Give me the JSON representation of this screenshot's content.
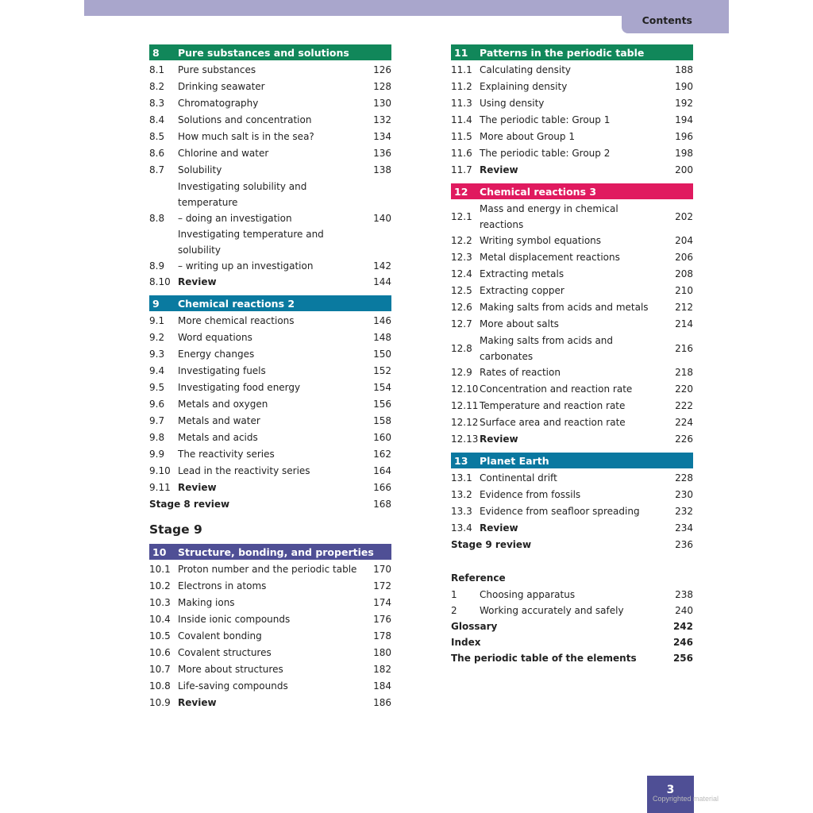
{
  "header": {
    "title": "Contents"
  },
  "colors": {
    "band": "#a9a6cc",
    "ch8": "#11875a",
    "ch9": "#0a7aa0",
    "ch10": "#4f4f95",
    "ch11": "#11875a",
    "ch12": "#e01a5f",
    "ch13": "#0a78a0"
  },
  "left": [
    {
      "type": "hdr",
      "n": "8",
      "t": "Pure substances and solutions",
      "color": "#11875a"
    },
    {
      "n": "8.1",
      "t": "Pure substances",
      "p": "126"
    },
    {
      "n": "8.2",
      "t": "Drinking seawater",
      "p": "128"
    },
    {
      "n": "8.3",
      "t": "Chromatography",
      "p": "130"
    },
    {
      "n": "8.4",
      "t": "Solutions and concentration",
      "p": "132"
    },
    {
      "n": "8.5",
      "t": "How much salt is in the sea?",
      "p": "134"
    },
    {
      "n": "8.6",
      "t": "Chlorine and water",
      "p": "136"
    },
    {
      "n": "8.7",
      "t": "Solubility",
      "p": "138"
    },
    {
      "n": "8.8",
      "t": "Investigating solubility and temperature",
      "t2": "– doing an investigation",
      "p": "140"
    },
    {
      "n": "8.9",
      "t": "Investigating temperature and solubility",
      "t2": "– writing up an investigation",
      "p": "142"
    },
    {
      "n": "8.10",
      "t": "Review",
      "p": "144",
      "bold": true
    },
    {
      "type": "hdr",
      "n": "9",
      "t": "Chemical reactions 2",
      "color": "#0a7aa0"
    },
    {
      "n": "9.1",
      "t": "More chemical reactions",
      "p": "146"
    },
    {
      "n": "9.2",
      "t": "Word equations",
      "p": "148"
    },
    {
      "n": "9.3",
      "t": "Energy changes",
      "p": "150"
    },
    {
      "n": "9.4",
      "t": "Investigating fuels",
      "p": "152"
    },
    {
      "n": "9.5",
      "t": "Investigating food energy",
      "p": "154"
    },
    {
      "n": "9.6",
      "t": "Metals and oxygen",
      "p": "156"
    },
    {
      "n": "9.7",
      "t": "Metals and water",
      "p": "158"
    },
    {
      "n": "9.8",
      "t": "Metals and acids",
      "p": "160"
    },
    {
      "n": "9.9",
      "t": "The reactivity series",
      "p": "162"
    },
    {
      "n": "9.10",
      "t": "Lead in the reactivity series",
      "p": "164"
    },
    {
      "n": "9.11",
      "t": "Review",
      "p": "166",
      "bold": true
    },
    {
      "type": "full",
      "t": "Stage 8 review",
      "p": "168"
    },
    {
      "type": "stage",
      "t": "Stage 9"
    },
    {
      "type": "hdr",
      "n": "10",
      "t": "Structure, bonding, and properties",
      "color": "#4f4f95"
    },
    {
      "n": "10.1",
      "t": "Proton number and the periodic table",
      "p": "170"
    },
    {
      "n": "10.2",
      "t": "Electrons in atoms",
      "p": "172"
    },
    {
      "n": "10.3",
      "t": "Making ions",
      "p": "174"
    },
    {
      "n": "10.4",
      "t": "Inside ionic compounds",
      "p": "176"
    },
    {
      "n": "10.5",
      "t": "Covalent bonding",
      "p": "178"
    },
    {
      "n": "10.6",
      "t": "Covalent structures",
      "p": "180"
    },
    {
      "n": "10.7",
      "t": "More about structures",
      "p": "182"
    },
    {
      "n": "10.8",
      "t": "Life-saving compounds",
      "p": "184"
    },
    {
      "n": "10.9",
      "t": "Review",
      "p": "186",
      "bold": true
    }
  ],
  "right": [
    {
      "type": "hdr",
      "n": "11",
      "t": "Patterns in the periodic table",
      "color": "#11875a"
    },
    {
      "n": "11.1",
      "t": "Calculating density",
      "p": "188"
    },
    {
      "n": "11.2",
      "t": "Explaining density",
      "p": "190"
    },
    {
      "n": "11.3",
      "t": "Using density",
      "p": "192"
    },
    {
      "n": "11.4",
      "t": "The periodic table: Group 1",
      "p": "194"
    },
    {
      "n": "11.5",
      "t": "More about Group 1",
      "p": "196"
    },
    {
      "n": "11.6",
      "t": "The periodic table: Group 2",
      "p": "198"
    },
    {
      "n": "11.7",
      "t": "Review",
      "p": "200",
      "bold": true
    },
    {
      "type": "hdr",
      "n": "12",
      "t": "Chemical reactions 3",
      "color": "#e01a5f"
    },
    {
      "n": "12.1",
      "t": "Mass and energy in chemical reactions",
      "p": "202"
    },
    {
      "n": "12.2",
      "t": "Writing symbol equations",
      "p": "204"
    },
    {
      "n": "12.3",
      "t": "Metal displacement reactions",
      "p": "206"
    },
    {
      "n": "12.4",
      "t": "Extracting metals",
      "p": "208"
    },
    {
      "n": "12.5",
      "t": "Extracting copper",
      "p": "210"
    },
    {
      "n": "12.6",
      "t": "Making salts from acids and metals",
      "p": "212"
    },
    {
      "n": "12.7",
      "t": "More about salts",
      "p": "214"
    },
    {
      "n": "12.8",
      "t": "Making salts from acids and carbonates",
      "p": "216"
    },
    {
      "n": "12.9",
      "t": "Rates of reaction",
      "p": "218"
    },
    {
      "n": "12.10",
      "t": "Concentration and reaction rate",
      "p": "220"
    },
    {
      "n": "12.11",
      "t": "Temperature and reaction rate",
      "p": "222"
    },
    {
      "n": "12.12",
      "t": "Surface area and reaction rate",
      "p": "224"
    },
    {
      "n": "12.13",
      "t": "Review",
      "p": "226",
      "bold": true
    },
    {
      "type": "hdr",
      "n": "13",
      "t": "Planet Earth",
      "color": "#0a78a0"
    },
    {
      "n": "13.1",
      "t": "Continental drift",
      "p": "228"
    },
    {
      "n": "13.2",
      "t": "Evidence from fossils",
      "p": "230"
    },
    {
      "n": "13.3",
      "t": "Evidence from seafloor spreading",
      "p": "232"
    },
    {
      "n": "13.4",
      "t": "Review",
      "p": "234",
      "bold": true
    },
    {
      "type": "full",
      "t": "Stage 9 review",
      "p": "236"
    },
    {
      "type": "ref",
      "t": "Reference"
    },
    {
      "n": "1",
      "t": "Choosing apparatus",
      "p": "238",
      "tight": true
    },
    {
      "n": "2",
      "t": "Working accurately and safely",
      "p": "240",
      "tight": true
    },
    {
      "type": "full",
      "t": "Glossary",
      "p": "242",
      "boldp": true,
      "tight": true
    },
    {
      "type": "full",
      "t": "Index",
      "p": "246",
      "boldp": true,
      "tight": true
    },
    {
      "type": "full",
      "t": "The periodic table of the elements",
      "p": "256",
      "boldp": true,
      "tight": true
    }
  ],
  "footer": {
    "page_number": "3",
    "watermark": "Copyrighted material"
  }
}
